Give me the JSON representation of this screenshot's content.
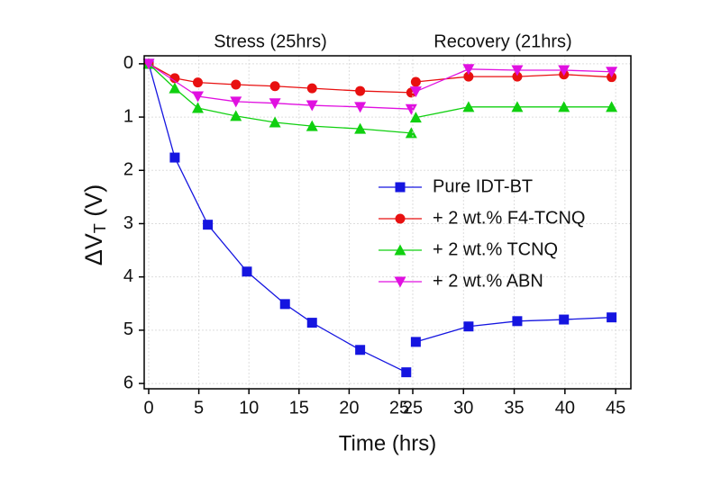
{
  "chart_data": [
    {
      "type": "line",
      "title": "Stress (25hrs)",
      "xlabel": "Time (hrs)",
      "ylabel": [
        "ΔV",
        "T",
        " (V)"
      ],
      "xlim": [
        -0.45,
        26.35
      ],
      "xticks": [
        0,
        5,
        10,
        15,
        20,
        25
      ],
      "ylim": [
        6.1,
        -0.15
      ],
      "yticks": [
        0,
        1,
        2,
        3,
        4,
        5,
        6
      ],
      "grid": true,
      "legend": "center right",
      "series": [
        {
          "name": "Pure IDT-BT",
          "color": "#1515e0",
          "marker": "square",
          "x": [
            0,
            2.6,
            5.9,
            9.8,
            13.6,
            16.3,
            21.1,
            25.7
          ],
          "values": [
            0,
            1.76,
            3.02,
            3.9,
            4.51,
            4.86,
            5.37,
            5.79
          ]
        },
        {
          "name": "+ 2 wt.% F4-TCNQ",
          "color": "#e81010",
          "marker": "circle",
          "x": [
            0,
            2.6,
            4.9,
            8.7,
            12.6,
            16.3,
            21.1,
            26.2
          ],
          "values": [
            0,
            0.27,
            0.35,
            0.39,
            0.42,
            0.46,
            0.51,
            0.54
          ]
        },
        {
          "name": "+ 2 wt.% TCNQ",
          "color": "#10d010",
          "marker": "triangle-up",
          "x": [
            0,
            2.6,
            4.9,
            8.7,
            12.6,
            16.3,
            21.1,
            26.2
          ],
          "values": [
            0,
            0.46,
            0.83,
            0.98,
            1.1,
            1.17,
            1.22,
            1.3
          ]
        },
        {
          "name": "+ 2 wt.% ABN",
          "color": "#e010e0",
          "marker": "triangle-down",
          "x": [
            0,
            4.9,
            8.7,
            12.6,
            16.3,
            21.1,
            26.2
          ],
          "values": [
            0,
            0.61,
            0.71,
            0.74,
            0.78,
            0.81,
            0.85
          ]
        }
      ]
    },
    {
      "type": "line",
      "title": "Recovery (21hrs)",
      "xlim": [
        25,
        46.5
      ],
      "xticks": [
        25,
        30,
        35,
        40,
        45
      ],
      "ylim": [
        6.1,
        -0.15
      ],
      "grid": true,
      "series": [
        {
          "color": "#1515e0",
          "marker": "square",
          "x": [
            25.3,
            30.5,
            35.3,
            39.9,
            44.6
          ],
          "values": [
            5.22,
            4.93,
            4.83,
            4.8,
            4.76
          ]
        },
        {
          "color": "#e81010",
          "marker": "circle",
          "x": [
            25.3,
            30.5,
            35.3,
            39.9,
            44.6
          ],
          "values": [
            0.34,
            0.24,
            0.24,
            0.2,
            0.25
          ]
        },
        {
          "color": "#10d010",
          "marker": "triangle-up",
          "x": [
            25.3,
            30.5,
            35.3,
            39.9,
            44.6
          ],
          "values": [
            1.01,
            0.81,
            0.81,
            0.81,
            0.81
          ]
        },
        {
          "color": "#e010e0",
          "marker": "triangle-down",
          "x": [
            25.3,
            30.5,
            35.3,
            39.9,
            44.6
          ],
          "values": [
            0.52,
            0.1,
            0.12,
            0.12,
            0.15
          ]
        }
      ]
    }
  ]
}
